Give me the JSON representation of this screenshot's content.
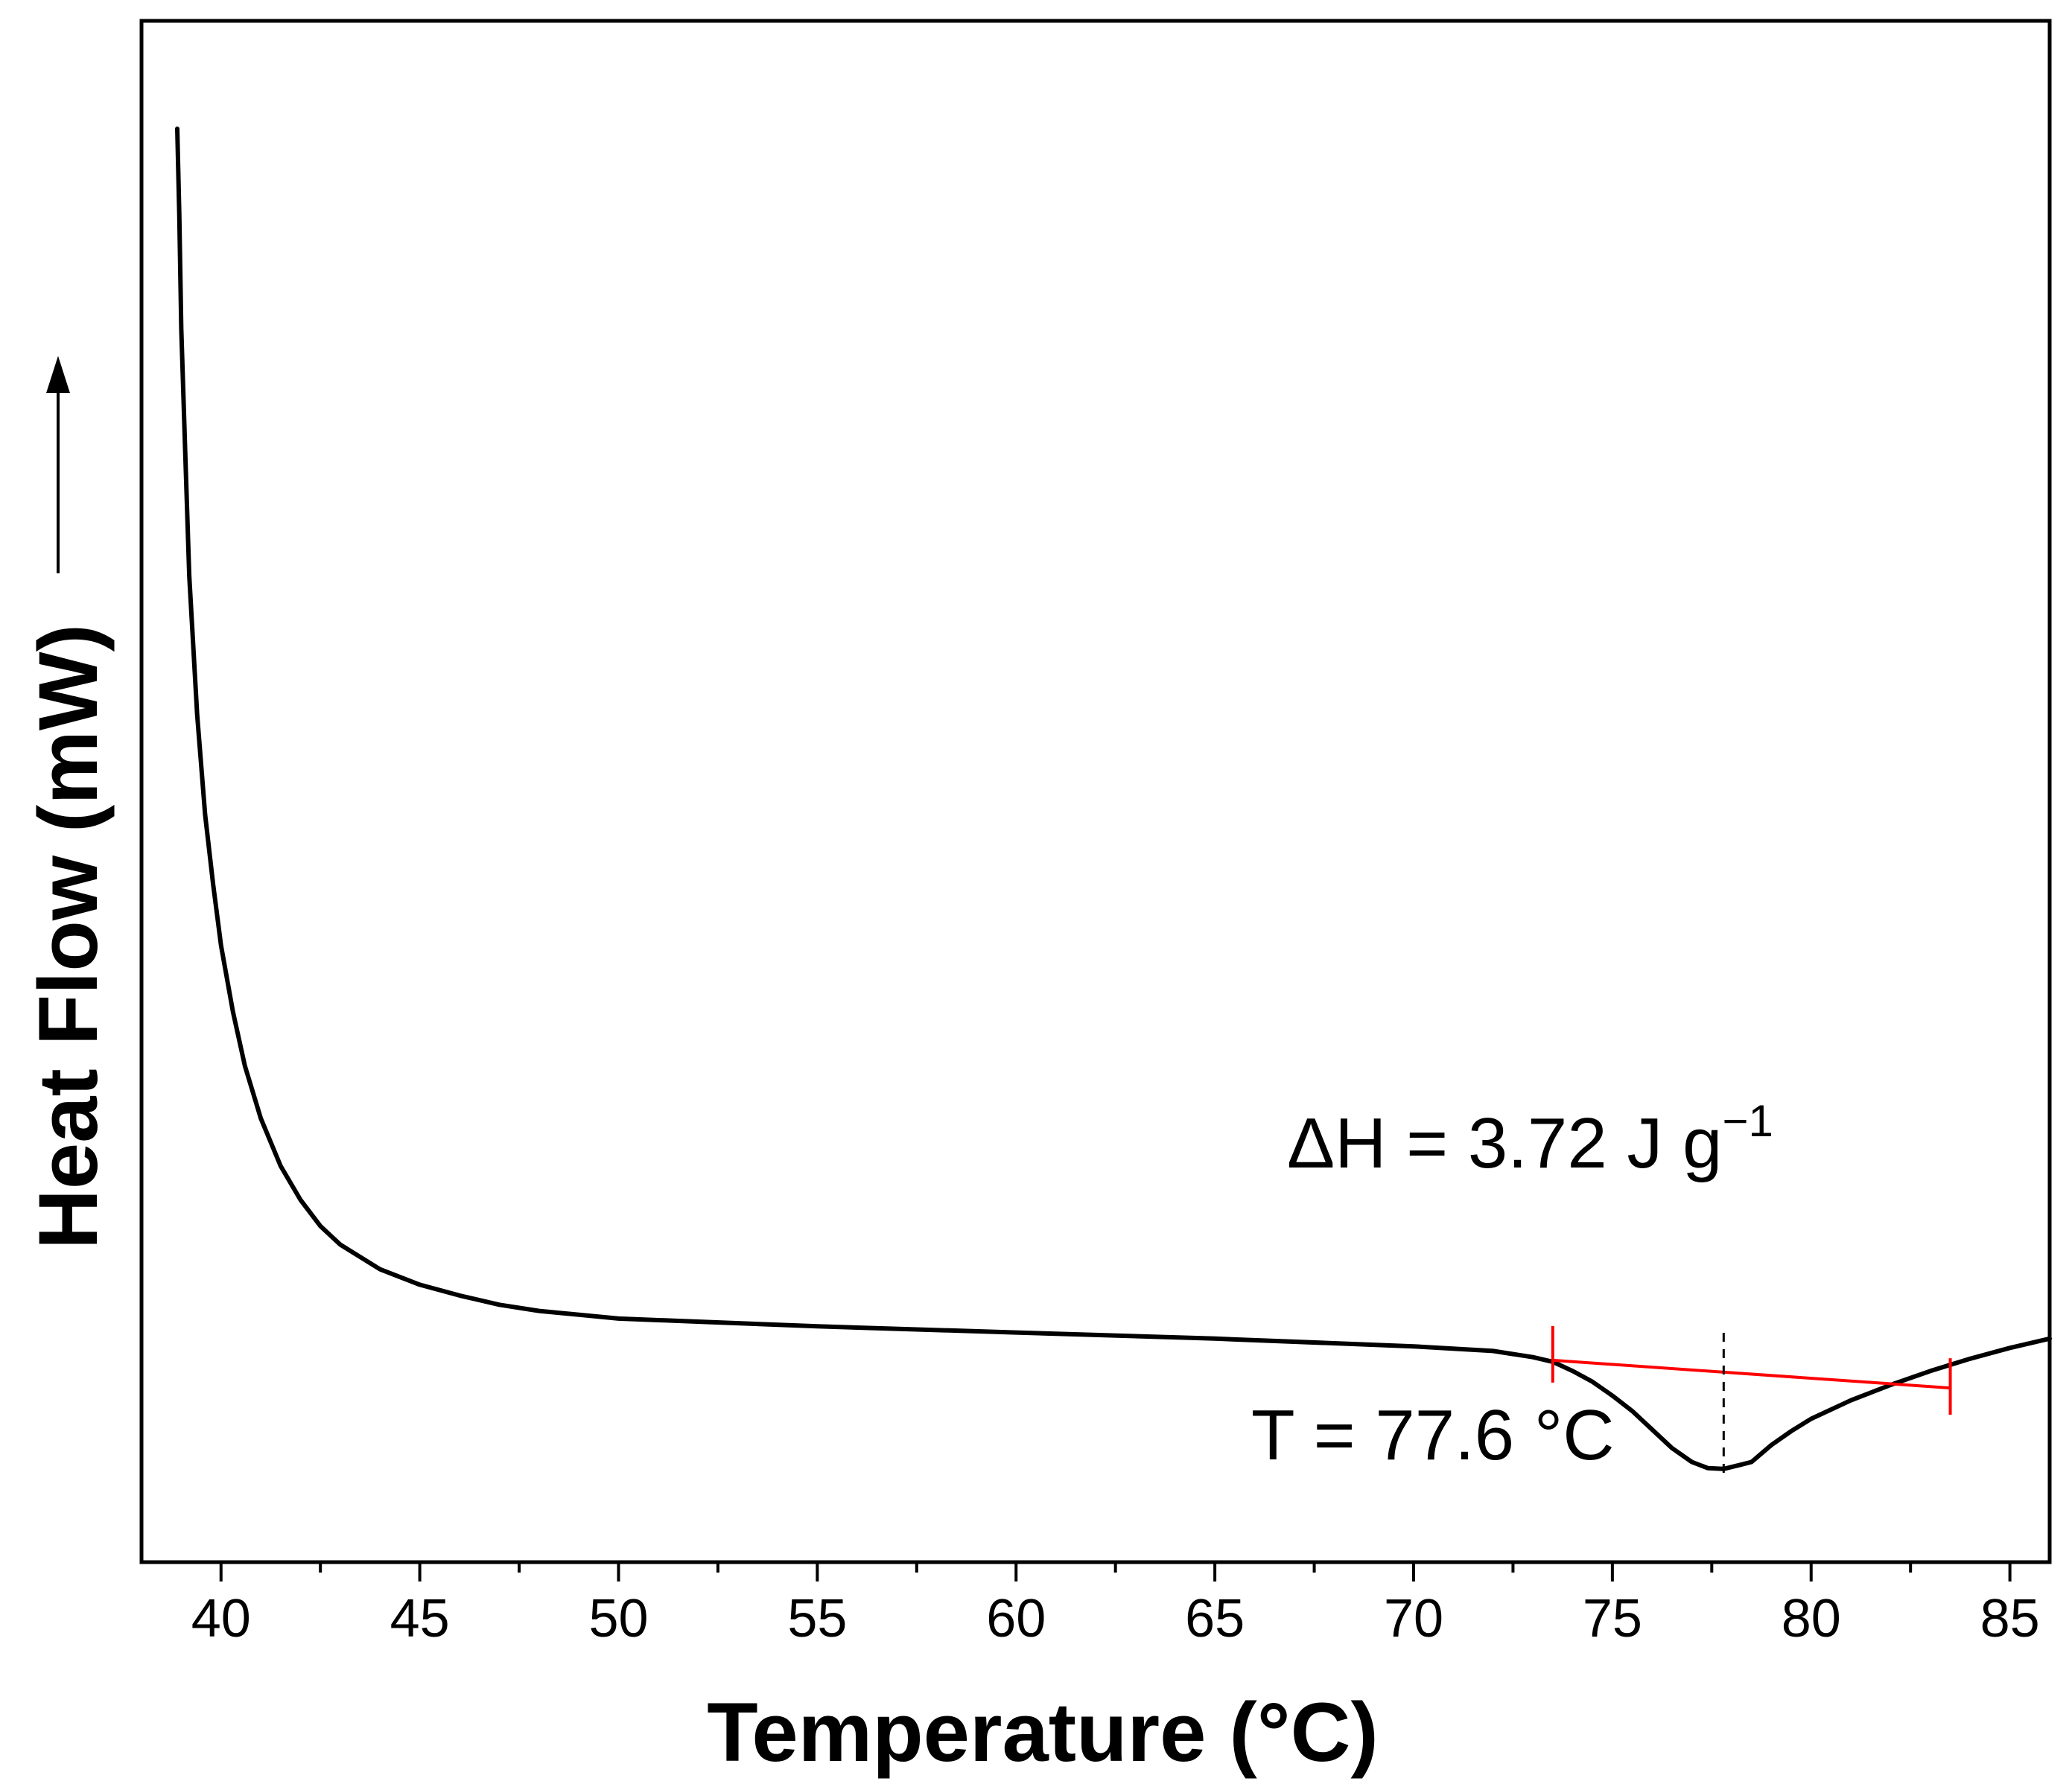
{
  "chart_data": {
    "type": "line",
    "xlabel": "Temperature (°C)",
    "ylabel": "Heat Flow (mW)",
    "xlim": [
      38,
      86
    ],
    "ylim": [
      0,
      1
    ],
    "x_ticks": [
      "40",
      "45",
      "50",
      "55",
      "60",
      "65",
      "70",
      "75",
      "80",
      "85"
    ],
    "y_ticks": [],
    "grid": false,
    "legend": "none",
    "series": [
      {
        "color": "#000000",
        "points": [
          [
            38.9,
            0.93
          ],
          [
            38.95,
            0.875
          ],
          [
            39.0,
            0.8
          ],
          [
            39.1,
            0.72
          ],
          [
            39.2,
            0.64
          ],
          [
            39.4,
            0.55
          ],
          [
            39.6,
            0.485
          ],
          [
            39.8,
            0.44
          ],
          [
            40.0,
            0.4
          ],
          [
            40.3,
            0.357
          ],
          [
            40.6,
            0.322
          ],
          [
            41.0,
            0.288
          ],
          [
            41.5,
            0.257
          ],
          [
            42.0,
            0.235
          ],
          [
            42.5,
            0.218
          ],
          [
            43.0,
            0.206
          ],
          [
            44.0,
            0.19
          ],
          [
            45.0,
            0.18
          ],
          [
            46.0,
            0.173
          ],
          [
            47.0,
            0.167
          ],
          [
            48.0,
            0.163
          ],
          [
            50.0,
            0.158
          ],
          [
            55.0,
            0.153
          ],
          [
            60.0,
            0.149
          ],
          [
            65.0,
            0.145
          ],
          [
            70.0,
            0.14
          ],
          [
            72.0,
            0.137
          ],
          [
            73.0,
            0.133
          ],
          [
            73.5,
            0.13
          ],
          [
            74.0,
            0.124
          ],
          [
            74.5,
            0.117
          ],
          [
            75.0,
            0.108
          ],
          [
            75.5,
            0.098
          ],
          [
            76.0,
            0.086
          ],
          [
            76.5,
            0.074
          ],
          [
            77.0,
            0.065
          ],
          [
            77.4,
            0.061
          ],
          [
            77.8,
            0.0605
          ],
          [
            78.2,
            0.063
          ],
          [
            78.5,
            0.065
          ],
          [
            79.0,
            0.076
          ],
          [
            79.5,
            0.085
          ],
          [
            80.0,
            0.093
          ],
          [
            81.0,
            0.105
          ],
          [
            82.0,
            0.115
          ],
          [
            83.0,
            0.124
          ],
          [
            84.0,
            0.132
          ],
          [
            85.0,
            0.139
          ],
          [
            86.0,
            0.145
          ]
        ]
      }
    ],
    "baseline": {
      "color": "#ff0000",
      "x": [
        73.5,
        83.5
      ],
      "y": [
        0.131,
        0.113
      ]
    },
    "peak_marker": {
      "x": 77.8
    },
    "annotations": {
      "enthalpy_main": "ΔH = 3.72 J g",
      "enthalpy_sup": "−1",
      "peak_temp": "T = 77.6 °C"
    }
  }
}
